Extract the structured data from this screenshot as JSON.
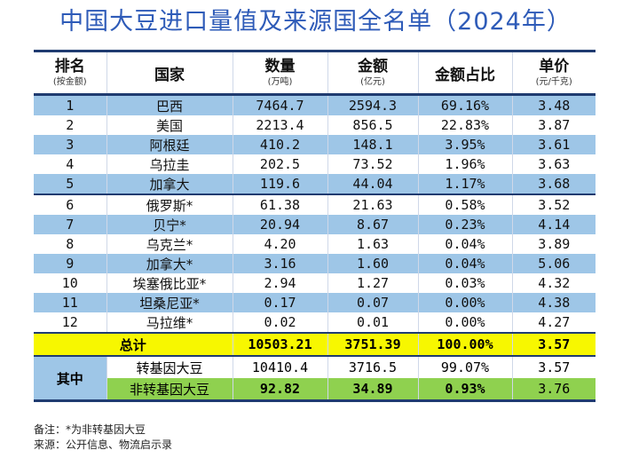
{
  "title": "中国大豆进口量值及来源国全名单（2024年）",
  "headers": {
    "rank": {
      "main": "排名",
      "sub": "(按金额)"
    },
    "country": {
      "main": "国家"
    },
    "qty": {
      "main": "数量",
      "sub": "(万吨)"
    },
    "amount": {
      "main": "金额",
      "sub": "(亿元)"
    },
    "share": {
      "main": "金额占比"
    },
    "price": {
      "main": "单价",
      "sub": "(元/千克)"
    }
  },
  "rows": [
    {
      "rank": "1",
      "country": "巴西",
      "qty": "7464.7",
      "amount": "2594.3",
      "share": "69.16%",
      "price": "3.48"
    },
    {
      "rank": "2",
      "country": "美国",
      "qty": "2213.4",
      "amount": "856.5",
      "share": "22.83%",
      "price": "3.87"
    },
    {
      "rank": "3",
      "country": "阿根廷",
      "qty": "410.2",
      "amount": "148.1",
      "share": "3.95%",
      "price": "3.61"
    },
    {
      "rank": "4",
      "country": "乌拉圭",
      "qty": "202.5",
      "amount": "73.52",
      "share": "1.96%",
      "price": "3.63"
    },
    {
      "rank": "5",
      "country": "加拿大",
      "qty": "119.6",
      "amount": "44.04",
      "share": "1.17%",
      "price": "3.68"
    },
    {
      "rank": "6",
      "country": "俄罗斯*",
      "qty": "61.38",
      "amount": "21.63",
      "share": "0.58%",
      "price": "3.52"
    },
    {
      "rank": "7",
      "country": "贝宁*",
      "qty": "20.94",
      "amount": "8.67",
      "share": "0.23%",
      "price": "4.14"
    },
    {
      "rank": "8",
      "country": "乌克兰*",
      "qty": "4.20",
      "amount": "1.63",
      "share": "0.04%",
      "price": "3.89"
    },
    {
      "rank": "9",
      "country": "加拿大*",
      "qty": "3.16",
      "amount": "1.60",
      "share": "0.04%",
      "price": "5.06"
    },
    {
      "rank": "10",
      "country": "埃塞俄比亚*",
      "qty": "2.94",
      "amount": "1.27",
      "share": "0.03%",
      "price": "4.32"
    },
    {
      "rank": "11",
      "country": "坦桑尼亚*",
      "qty": "0.17",
      "amount": "0.07",
      "share": "0.00%",
      "price": "4.38"
    },
    {
      "rank": "12",
      "country": "马拉维*",
      "qty": "0.02",
      "amount": "0.01",
      "share": "0.00%",
      "price": "4.27"
    }
  ],
  "total": {
    "label": "总计",
    "qty": "10503.21",
    "amount": "3751.39",
    "share": "100.00%",
    "price": "3.57"
  },
  "breakdown": {
    "label": "其中",
    "gm": {
      "label": "转基因大豆",
      "qty": "10410.4",
      "amount": "3716.5",
      "share": "99.07%",
      "price": "3.57"
    },
    "non_gm": {
      "label": "非转基因大豆",
      "qty": "92.82",
      "amount": "34.89",
      "share": "0.93%",
      "price": "3.76"
    }
  },
  "notes": {
    "note": "备注：*为非转基因大豆",
    "source": "来源：公开信息、物流启示录"
  }
}
